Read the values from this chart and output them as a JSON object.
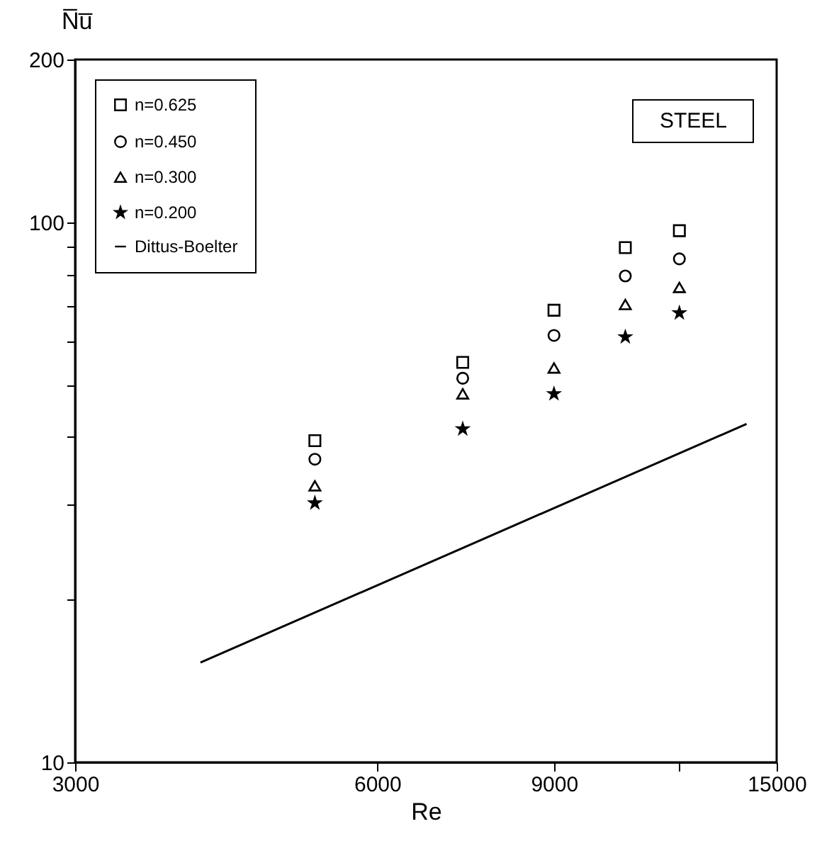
{
  "chart_data": {
    "type": "scatter",
    "xlabel": "Re",
    "ylabel": "N̅u̅",
    "log": "xy",
    "legend": "top left",
    "grid": false,
    "annotations": [
      "STEEL"
    ],
    "x": [
      5200,
      7300,
      9000,
      10600,
      12000
    ],
    "series": [
      {
        "name": "n=0.625",
        "color": "#000000",
        "marker": "square",
        "values": [
          39.4,
          55.0,
          68.7,
          89.7,
          96.4
        ]
      },
      {
        "name": "n=0.450",
        "color": "#000000",
        "marker": "circle",
        "values": [
          36.4,
          51.4,
          61.7,
          79.5,
          85.5
        ]
      },
      {
        "name": "n=0.300",
        "color": "#000000",
        "marker": "triangle",
        "values": [
          32.5,
          48.1,
          53.7,
          70.4,
          75.7
        ]
      },
      {
        "name": "n=0.200",
        "color": "#000000",
        "marker": "star",
        "values": [
          30.2,
          41.4,
          48.1,
          61.3,
          67.9
        ]
      },
      {
        "name": "Dittus-Boelter",
        "type": "line",
        "color": "#000000",
        "line_style": "solid",
        "x": [
          4000,
          14000
        ],
        "values": [
          15.3,
          42.3
        ]
      }
    ],
    "xlim": [
      3000,
      15000
    ],
    "xticks": [
      3000,
      6000,
      9000,
      {
        "value": 12000,
        "label": null
      },
      15000
    ],
    "ylim": [
      10,
      200
    ],
    "yticks": [
      10,
      {
        "value": 20,
        "label": null
      },
      {
        "value": 30,
        "label": null
      },
      {
        "value": 40,
        "label": null
      },
      {
        "value": 50,
        "label": null
      },
      {
        "value": 60,
        "label": null
      },
      {
        "value": 70,
        "label": null
      },
      {
        "value": 80,
        "label": null
      },
      {
        "value": 90,
        "label": null
      },
      100,
      200
    ]
  }
}
